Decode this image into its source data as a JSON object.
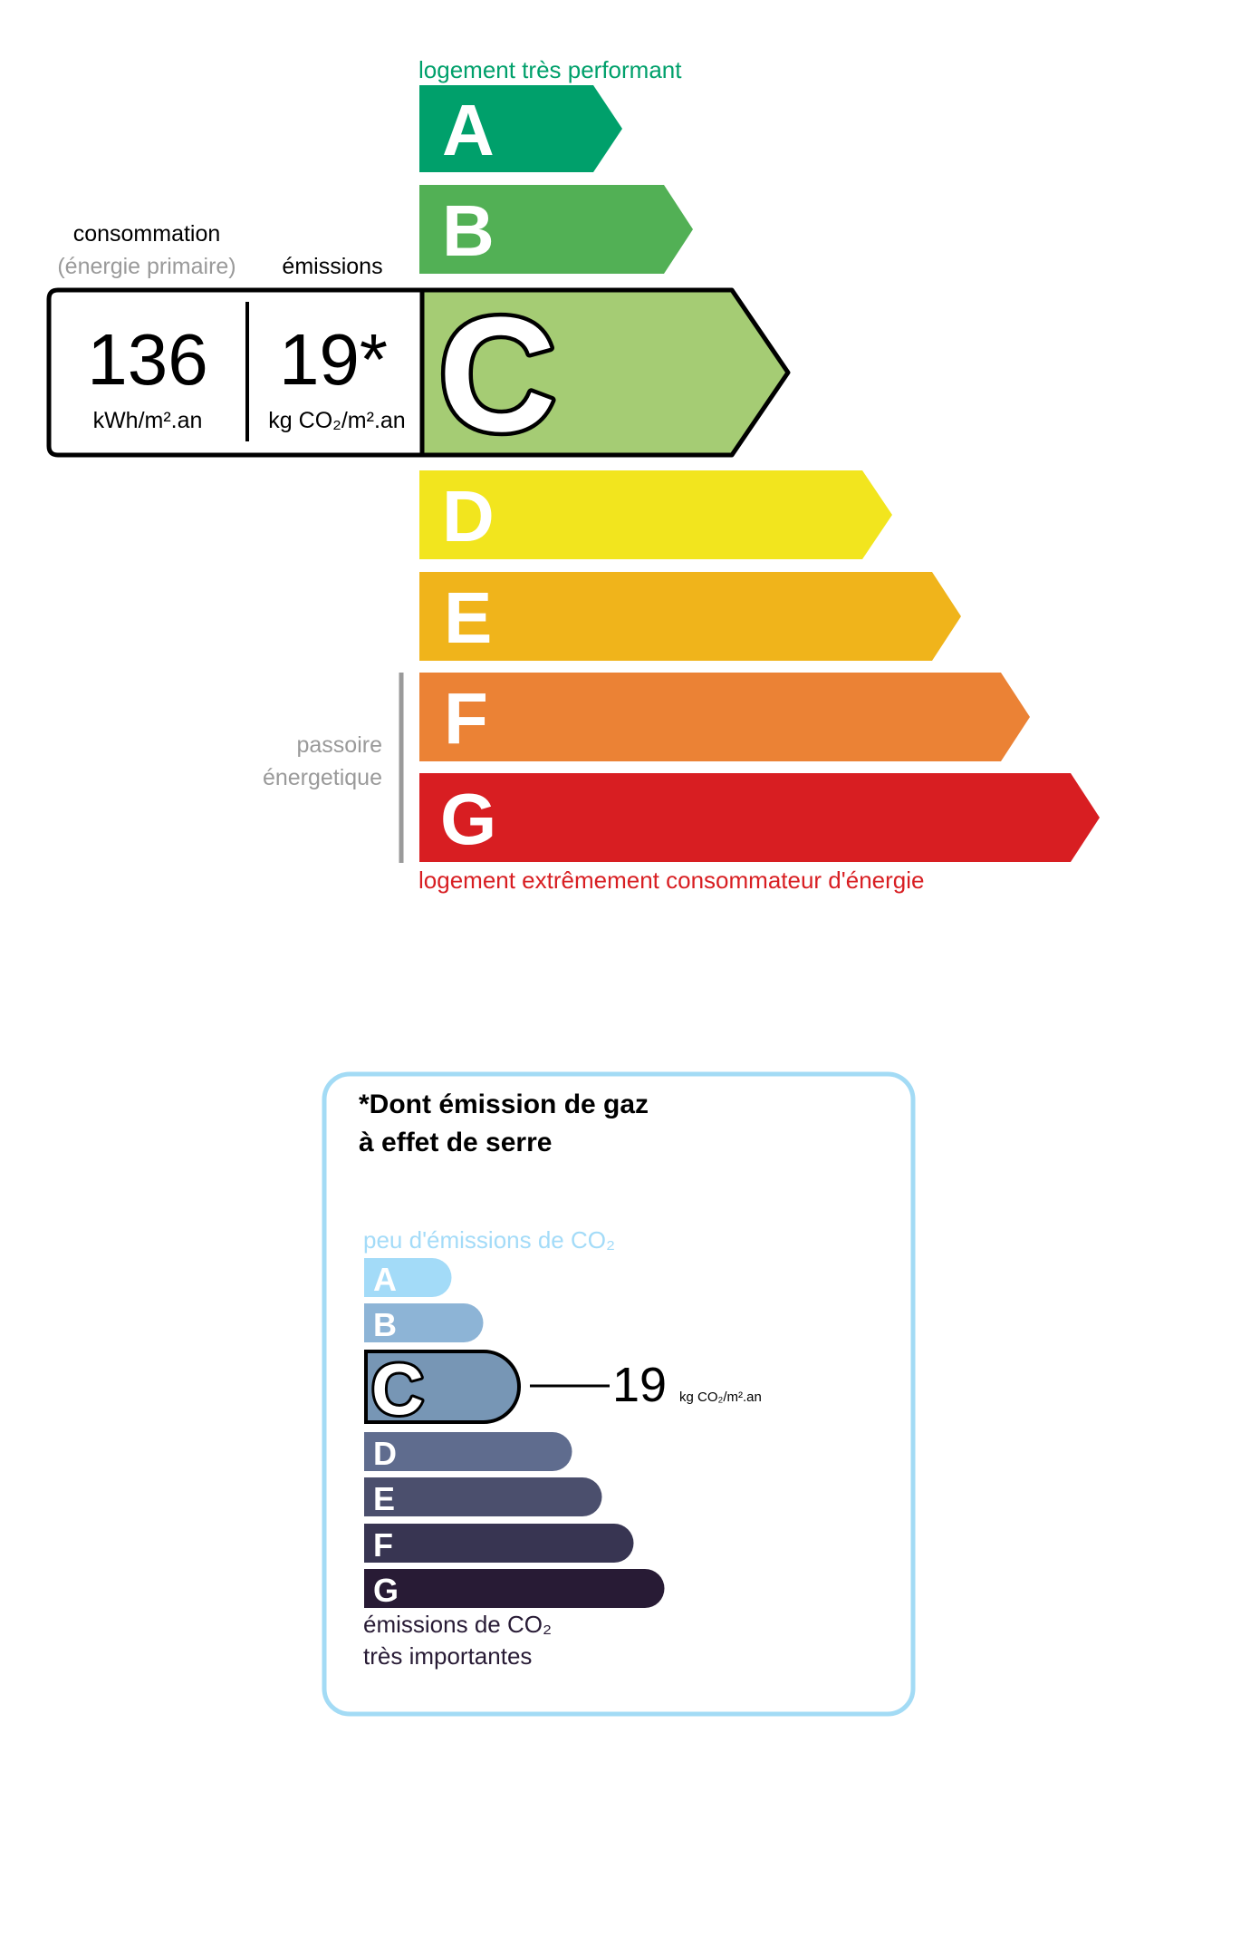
{
  "energy": {
    "top_label": "logement très performant",
    "bottom_label": "logement extrêmement consommateur d'énergie",
    "top_label_color": "#00a06b",
    "bottom_label_color": "#d81e22",
    "classes": [
      {
        "letter": "A",
        "color": "#00a06b"
      },
      {
        "letter": "B",
        "color": "#52b055"
      },
      {
        "letter": "C",
        "color": "#a5cc74"
      },
      {
        "letter": "D",
        "color": "#f2e51e"
      },
      {
        "letter": "E",
        "color": "#f0b41b"
      },
      {
        "letter": "F",
        "color": "#eb8235"
      },
      {
        "letter": "G",
        "color": "#d81e22"
      }
    ],
    "current_class": "C",
    "consumption_label": "consommation",
    "consumption_sublabel": "(énergie primaire)",
    "emissions_label": "émissions",
    "consumption_value": "136",
    "consumption_unit": "kWh/m².an",
    "emissions_value": "19*",
    "emissions_unit": "kg CO₂/m².an",
    "passoire_line1": "passoire",
    "passoire_line2": "énergetique"
  },
  "ghg": {
    "title_line1": "*Dont émission de gaz",
    "title_line2": "à effet de serre",
    "top_label": "peu d'émissions de CO₂",
    "bottom_label_line1": "émissions de CO₂",
    "bottom_label_line2": "très importantes",
    "border_color": "#a3dbf5",
    "classes": [
      {
        "letter": "A",
        "color": "#a3dbf8"
      },
      {
        "letter": "B",
        "color": "#8db4d6"
      },
      {
        "letter": "C",
        "color": "#7796b5"
      },
      {
        "letter": "D",
        "color": "#5f6c8e"
      },
      {
        "letter": "E",
        "color": "#4b4f6d"
      },
      {
        "letter": "F",
        "color": "#383552"
      },
      {
        "letter": "G",
        "color": "#281b35"
      }
    ],
    "current_class": "C",
    "value": "19",
    "unit": "kg CO₂/m².an"
  }
}
